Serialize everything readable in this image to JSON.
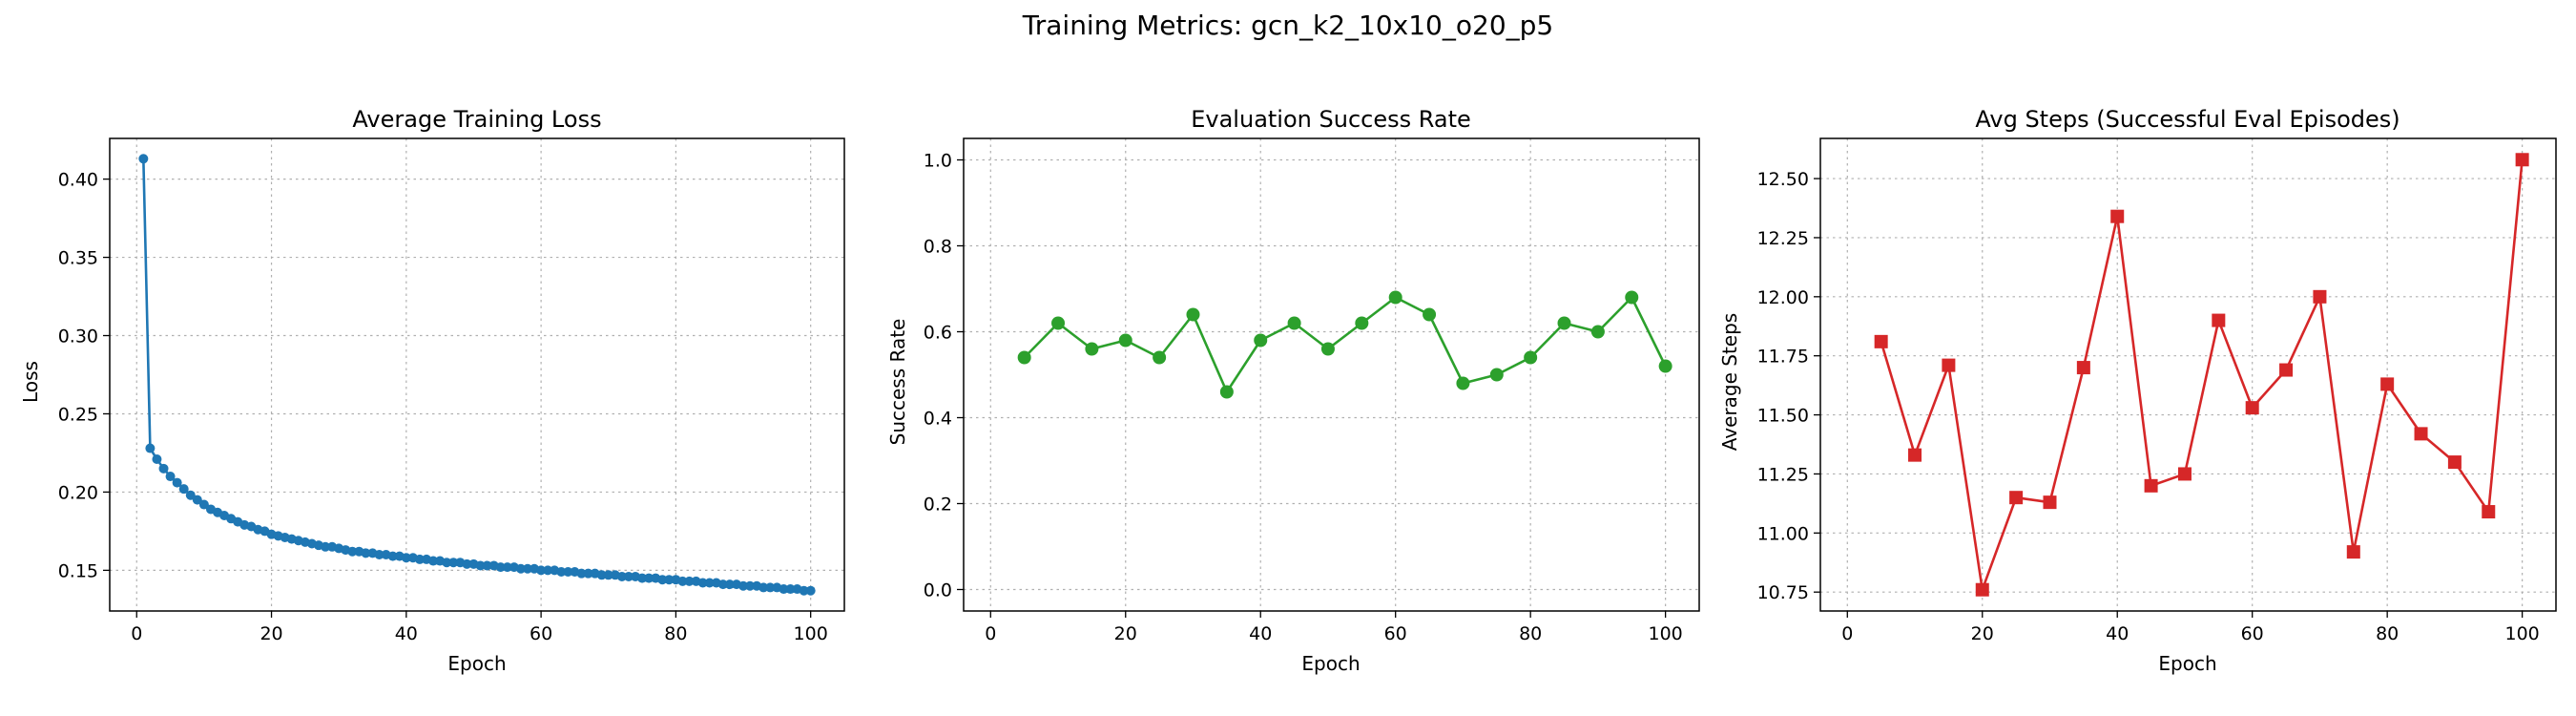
{
  "figure": {
    "suptitle": "Training Metrics: gcn_k2_10x10_o20_p5"
  },
  "chart_data": [
    {
      "type": "line",
      "title": "Average Training Loss",
      "xlabel": "Epoch",
      "ylabel": "Loss",
      "xlim": [
        -4,
        105
      ],
      "ylim": [
        0.124,
        0.426
      ],
      "xticks": [
        0,
        20,
        40,
        60,
        80,
        100
      ],
      "yticks": [
        0.15,
        0.2,
        0.25,
        0.3,
        0.35,
        0.4
      ],
      "xtick_labels": [
        "0",
        "20",
        "40",
        "60",
        "80",
        "100"
      ],
      "ytick_labels": [
        "0.15",
        "0.20",
        "0.25",
        "0.30",
        "0.35",
        "0.40"
      ],
      "grid": true,
      "color": "#1f77b4",
      "marker": "circle",
      "series": [
        {
          "x": [
            1,
            2,
            3,
            4,
            5,
            6,
            7,
            8,
            9,
            10,
            11,
            12,
            13,
            14,
            15,
            16,
            17,
            18,
            19,
            20,
            21,
            22,
            23,
            24,
            25,
            26,
            27,
            28,
            29,
            30,
            31,
            32,
            33,
            34,
            35,
            36,
            37,
            38,
            39,
            40,
            41,
            42,
            43,
            44,
            45,
            46,
            47,
            48,
            49,
            50,
            51,
            52,
            53,
            54,
            55,
            56,
            57,
            58,
            59,
            60,
            61,
            62,
            63,
            64,
            65,
            66,
            67,
            68,
            69,
            70,
            71,
            72,
            73,
            74,
            75,
            76,
            77,
            78,
            79,
            80,
            81,
            82,
            83,
            84,
            85,
            86,
            87,
            88,
            89,
            90,
            91,
            92,
            93,
            94,
            95,
            96,
            97,
            98,
            99,
            100
          ],
          "y": [
            0.413,
            0.228,
            0.221,
            0.215,
            0.21,
            0.206,
            0.202,
            0.198,
            0.195,
            0.192,
            0.189,
            0.187,
            0.185,
            0.183,
            0.181,
            0.179,
            0.178,
            0.176,
            0.175,
            0.173,
            0.172,
            0.171,
            0.17,
            0.169,
            0.168,
            0.167,
            0.166,
            0.165,
            0.165,
            0.164,
            0.163,
            0.162,
            0.162,
            0.161,
            0.161,
            0.16,
            0.16,
            0.159,
            0.159,
            0.158,
            0.158,
            0.157,
            0.157,
            0.156,
            0.156,
            0.155,
            0.155,
            0.155,
            0.154,
            0.154,
            0.153,
            0.153,
            0.153,
            0.152,
            0.152,
            0.152,
            0.151,
            0.151,
            0.151,
            0.15,
            0.15,
            0.15,
            0.149,
            0.149,
            0.149,
            0.148,
            0.148,
            0.148,
            0.147,
            0.147,
            0.147,
            0.146,
            0.146,
            0.146,
            0.145,
            0.145,
            0.145,
            0.144,
            0.144,
            0.144,
            0.143,
            0.143,
            0.143,
            0.142,
            0.142,
            0.142,
            0.141,
            0.141,
            0.141,
            0.14,
            0.14,
            0.14,
            0.139,
            0.139,
            0.139,
            0.138,
            0.138,
            0.138,
            0.137,
            0.137
          ]
        }
      ]
    },
    {
      "type": "line",
      "title": "Evaluation Success Rate",
      "xlabel": "Epoch",
      "ylabel": "Success Rate",
      "xlim": [
        -4,
        105
      ],
      "ylim": [
        -0.05,
        1.05
      ],
      "xticks": [
        0,
        20,
        40,
        60,
        80,
        100
      ],
      "yticks": [
        0.0,
        0.2,
        0.4,
        0.6,
        0.8,
        1.0
      ],
      "xtick_labels": [
        "0",
        "20",
        "40",
        "60",
        "80",
        "100"
      ],
      "ytick_labels": [
        "0.0",
        "0.2",
        "0.4",
        "0.6",
        "0.8",
        "1.0"
      ],
      "grid": true,
      "color": "#2ca02c",
      "marker": "circle",
      "series": [
        {
          "x": [
            5,
            10,
            15,
            20,
            25,
            30,
            35,
            40,
            45,
            50,
            55,
            60,
            65,
            70,
            75,
            80,
            85,
            90,
            95,
            100
          ],
          "y": [
            0.54,
            0.62,
            0.56,
            0.58,
            0.54,
            0.64,
            0.46,
            0.58,
            0.62,
            0.56,
            0.62,
            0.68,
            0.64,
            0.48,
            0.5,
            0.54,
            0.62,
            0.6,
            0.68,
            0.52
          ]
        }
      ]
    },
    {
      "type": "line",
      "title": "Avg Steps (Successful Eval Episodes)",
      "xlabel": "Epoch",
      "ylabel": "Average Steps",
      "xlim": [
        -4,
        105
      ],
      "ylim": [
        10.67,
        12.67
      ],
      "xticks": [
        0,
        20,
        40,
        60,
        80,
        100
      ],
      "yticks": [
        10.75,
        11.0,
        11.25,
        11.5,
        11.75,
        12.0,
        12.25,
        12.5
      ],
      "xtick_labels": [
        "0",
        "20",
        "40",
        "60",
        "80",
        "100"
      ],
      "ytick_labels": [
        "10.75",
        "11.00",
        "11.25",
        "11.50",
        "11.75",
        "12.00",
        "12.25",
        "12.50"
      ],
      "grid": true,
      "color": "#d62728",
      "marker": "square",
      "series": [
        {
          "x": [
            5,
            10,
            15,
            20,
            25,
            30,
            35,
            40,
            45,
            50,
            55,
            60,
            65,
            70,
            75,
            80,
            85,
            90,
            95,
            100
          ],
          "y": [
            11.81,
            11.33,
            11.71,
            10.76,
            11.15,
            11.13,
            11.7,
            12.34,
            11.2,
            11.25,
            11.9,
            11.53,
            11.69,
            12.0,
            10.92,
            11.63,
            11.42,
            11.3,
            11.09,
            12.58
          ]
        }
      ]
    }
  ]
}
